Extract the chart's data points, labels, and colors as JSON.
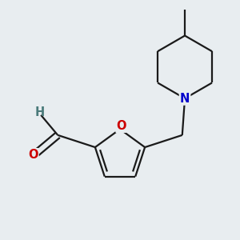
{
  "background_color": "#e8edf0",
  "bond_color": "#1a1a1a",
  "atom_colors": {
    "O": "#cc0000",
    "N": "#0000cc",
    "C": "#1a1a1a",
    "H": "#4a7a7a"
  },
  "line_width": 1.6,
  "font_size": 10.5,
  "figsize": [
    3.0,
    3.0
  ],
  "dpi": 100
}
